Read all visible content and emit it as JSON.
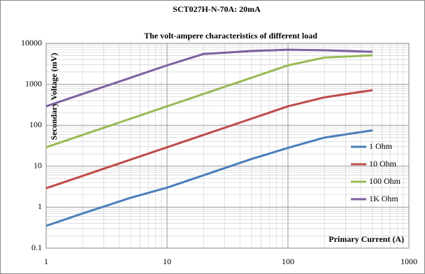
{
  "chart_data": {
    "type": "line",
    "title": "SCT027H-N-70A: 20mA",
    "subtitle": "The volt-ampere characteristics of different load",
    "x_label": "Primary Current (A)",
    "y_label": "Secondary Voltage (mV)",
    "x": [
      1,
      2,
      5,
      10,
      20,
      50,
      100,
      200,
      500
    ],
    "series": [
      {
        "name": "1 Ohm",
        "color": "#4a7ebb",
        "values": [
          0.35,
          0.7,
          1.7,
          3,
          6,
          15,
          28,
          50,
          75
        ]
      },
      {
        "name": "10 Ohm",
        "color": "#be4b48",
        "values": [
          2.9,
          5.8,
          14.5,
          29,
          58,
          145,
          290,
          480,
          720
        ]
      },
      {
        "name": "100 Ohm",
        "color": "#98b954",
        "values": [
          29,
          58,
          145,
          290,
          580,
          1450,
          2900,
          4500,
          5100
        ]
      },
      {
        "name": "1K Ohm",
        "color": "#7d60a0",
        "values": [
          290,
          580,
          1450,
          2900,
          5500,
          6500,
          7000,
          6800,
          6200
        ]
      }
    ],
    "xlim": [
      1,
      1000
    ],
    "ylim": [
      0.1,
      10000
    ],
    "xticks": [
      1,
      10,
      100,
      1000
    ],
    "yticks": [
      0.1,
      1,
      10,
      100,
      1000,
      10000
    ],
    "xlog": true,
    "ylog": true,
    "grid": true,
    "minor_grid": true,
    "legend": "right"
  }
}
